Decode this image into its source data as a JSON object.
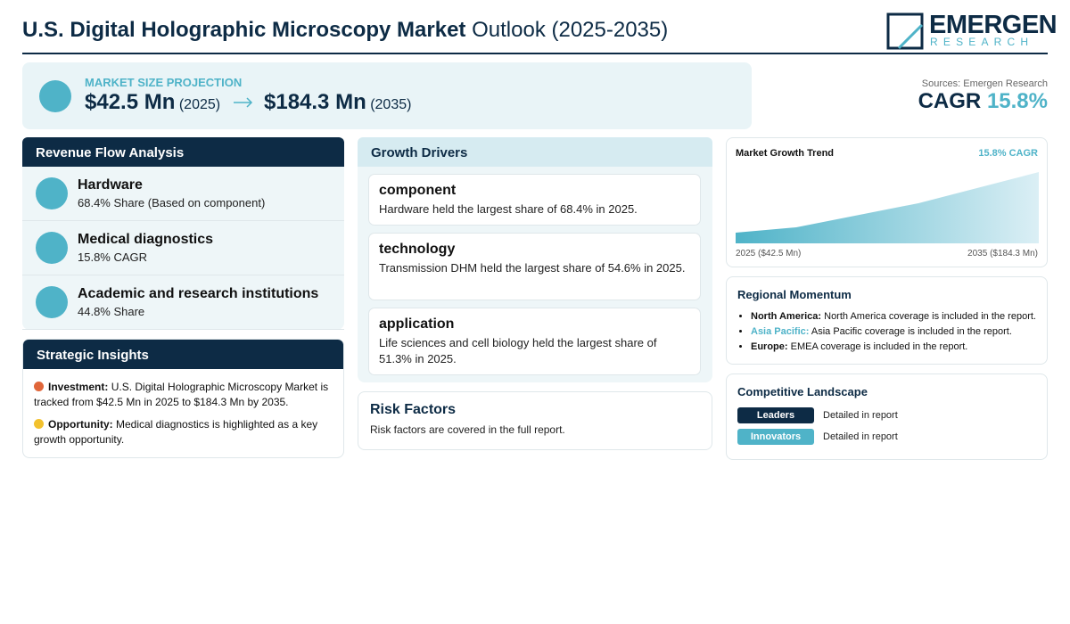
{
  "header": {
    "title_bold": "U.S. Digital Holographic Microscopy Market",
    "title_rest": "Outlook (2025-2035)"
  },
  "logo": {
    "name": "EMERGEN",
    "sub": "RESEARCH"
  },
  "projection": {
    "label": "MARKET SIZE PROJECTION",
    "start_value": "$42.5 Mn",
    "start_year": "(2025)",
    "end_value": "$184.3 Mn",
    "end_year": "(2035)"
  },
  "summary": {
    "sources": "Sources: Emergen Research",
    "cagr_label": "CAGR",
    "cagr_value": "15.8%"
  },
  "revenue": {
    "title": "Revenue Flow Analysis",
    "items": [
      {
        "name": "Hardware",
        "detail": "68.4% Share (Based on component)"
      },
      {
        "name": "Medical diagnostics",
        "detail": "15.8% CAGR"
      },
      {
        "name": "Academic and research institutions",
        "detail": "44.8% Share"
      }
    ]
  },
  "insights": {
    "title": "Strategic Insights",
    "items": [
      {
        "label": "Investment:",
        "text": "U.S. Digital Holographic Microscopy Market is tracked from $42.5 Mn in 2025 to $184.3 Mn by 2035."
      },
      {
        "label": "Opportunity:",
        "text": "Medical diagnostics is highlighted as a key growth opportunity."
      }
    ]
  },
  "drivers": {
    "title": "Growth Drivers",
    "items": [
      {
        "name": "component",
        "text": "Hardware held the largest share of 68.4% in 2025."
      },
      {
        "name": "technology",
        "text": "Transmission DHM held the largest share of 54.6% in 2025."
      },
      {
        "name": "application",
        "text": "Life sciences and cell biology held the largest share of 51.3% in 2025."
      }
    ]
  },
  "risk": {
    "title": "Risk Factors",
    "text": "Risk factors are covered in the full report."
  },
  "trend": {
    "title": "Market Growth Trend",
    "cagr": "15.8% CAGR",
    "start": "2025 ($42.5 Mn)",
    "end": "2035 ($184.3 Mn)"
  },
  "regional": {
    "title": "Regional Momentum",
    "items": [
      {
        "name": "North America:",
        "text": "North America coverage is included in the report."
      },
      {
        "name": "Asia Pacific:",
        "text": "Asia Pacific coverage is included in the report."
      },
      {
        "name": "Europe:",
        "text": "EMEA coverage is included in the report."
      }
    ]
  },
  "competitive": {
    "title": "Competitive Landscape",
    "items": [
      {
        "badge": "Leaders",
        "text": "Detailed in report"
      },
      {
        "badge": "Innovators",
        "text": "Detailed in report"
      }
    ]
  }
}
